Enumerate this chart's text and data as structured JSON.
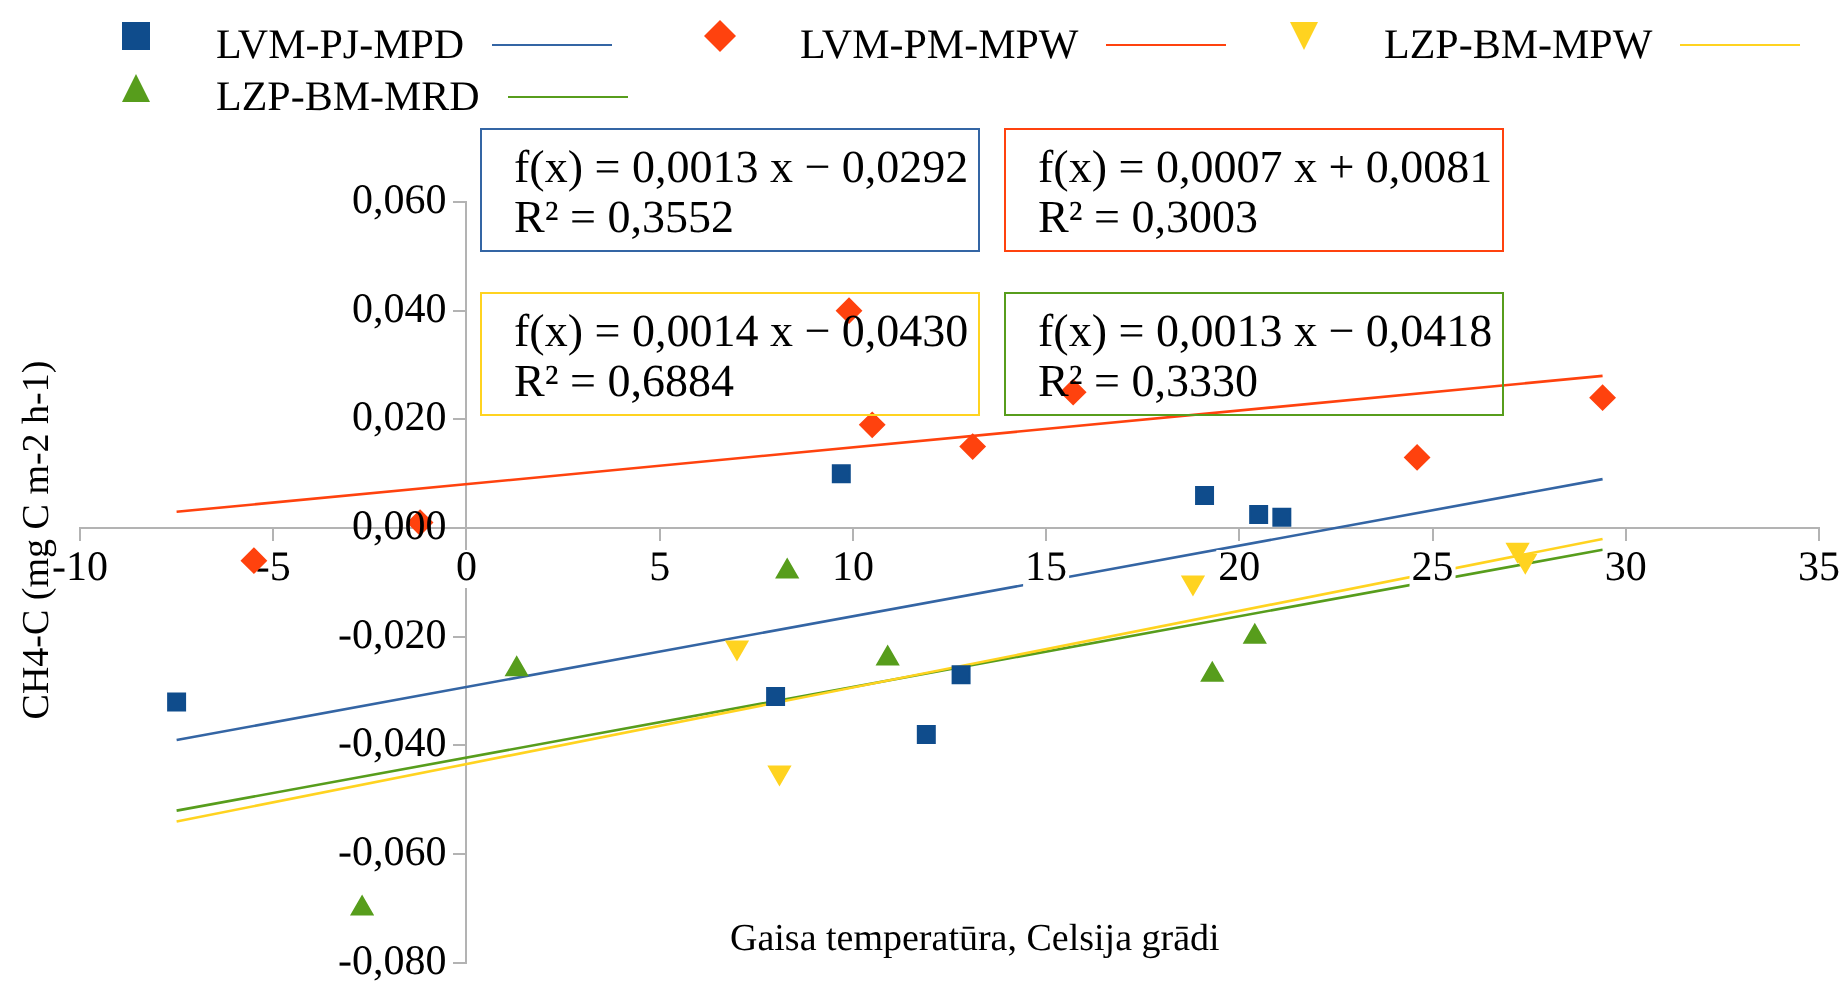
{
  "chart_data": {
    "type": "scatter",
    "xlabel": "Gaisa temperatūra, Celsija grādi",
    "ylabel": "CH4-C (mg C m-2 h-1)",
    "xlim": [
      -10,
      35
    ],
    "xticks": [
      -10,
      -5,
      0,
      5,
      10,
      15,
      20,
      25,
      30,
      35
    ],
    "ylim": [
      -0.08,
      0.06
    ],
    "yticks": [
      {
        "value": -0.08,
        "label": "-0,080"
      },
      {
        "value": -0.06,
        "label": "-0,060"
      },
      {
        "value": -0.04,
        "label": "-0,040"
      },
      {
        "value": -0.02,
        "label": "-0,020"
      },
      {
        "value": 0,
        "label": "0,000"
      },
      {
        "value": 0.02,
        "label": "0,020"
      },
      {
        "value": 0.04,
        "label": "0,040"
      },
      {
        "value": 0.06,
        "label": "0,060"
      }
    ],
    "grid": false,
    "legend": "top",
    "series": [
      {
        "name": "LVM-PJ-MPD",
        "type": "scatter",
        "marker": "square",
        "color": "#0f4c8c",
        "x": [
          -7.5,
          8.0,
          9.7,
          11.9,
          12.8,
          19.1,
          20.5,
          21.1
        ],
        "values": [
          -0.032,
          -0.031,
          0.01,
          -0.038,
          -0.027,
          0.006,
          0.0025,
          0.002
        ]
      },
      {
        "type": "line",
        "marker": "none",
        "color": "#3465a4",
        "x": [
          -7.5,
          29.4
        ],
        "values": [
          -0.039,
          0.009
        ]
      },
      {
        "name": "LVM-PM-MPW",
        "type": "scatter",
        "marker": "diamond",
        "color": "#ff420e",
        "x": [
          -5.5,
          -1.2,
          9.9,
          10.5,
          13.1,
          15.7,
          24.6,
          29.4
        ],
        "values": [
          -0.006,
          0.001,
          0.04,
          0.019,
          0.015,
          0.025,
          0.013,
          0.024
        ]
      },
      {
        "type": "line",
        "marker": "none",
        "color": "#ff420e",
        "x": [
          -7.5,
          29.4
        ],
        "values": [
          0.003,
          0.028
        ]
      },
      {
        "name": "LZP-BM-MPW",
        "type": "scatter",
        "marker": "triangle-down",
        "color": "#ffd320",
        "x": [
          7.0,
          8.1,
          18.8,
          27.2,
          27.4
        ],
        "values": [
          -0.022,
          -0.045,
          -0.01,
          -0.004,
          -0.006
        ]
      },
      {
        "type": "line",
        "marker": "none",
        "color": "#ffd320",
        "x": [
          -7.5,
          29.4
        ],
        "values": [
          -0.054,
          -0.002
        ]
      },
      {
        "name": "LZP-BM-MRD",
        "type": "scatter",
        "marker": "triangle",
        "color": "#579d1c",
        "x": [
          -2.7,
          1.3,
          8.3,
          10.9,
          19.3,
          20.4
        ],
        "values": [
          -0.07,
          -0.026,
          -0.008,
          -0.024,
          -0.027,
          -0.02
        ]
      },
      {
        "type": "line",
        "marker": "none",
        "color": "#579d1c",
        "x": [
          -7.5,
          29.4
        ],
        "values": [
          -0.052,
          -0.004
        ]
      }
    ],
    "annotations": [
      "f(x) = 0,0013 x − 0,0292\nR² = 0,3552",
      "f(x) = 0,0007 x + 0,0081\nR² = 0,3003",
      "f(x) = 0,0014 x − 0,0430\nR² = 0,6884",
      "f(x) = 0,0013 x − 0,0418\nR² = 0,3330"
    ]
  }
}
